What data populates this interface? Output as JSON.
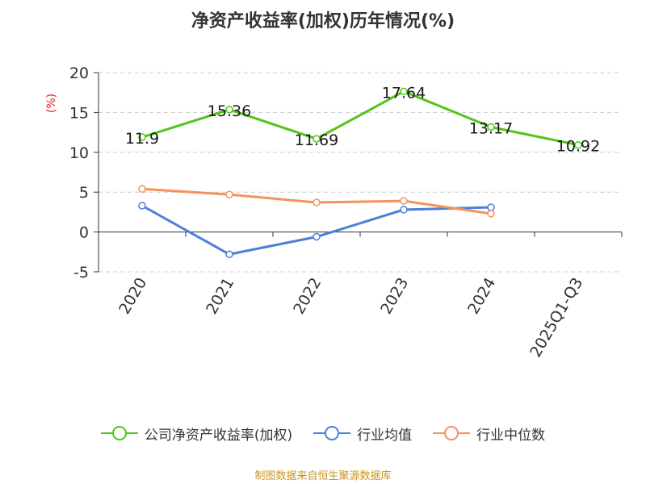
{
  "chart_data": {
    "type": "line",
    "title": "净资产收益率(加权)历年情况(%)",
    "ylabel": "(%)",
    "categories": [
      "2020",
      "2021",
      "2022",
      "2023",
      "2024",
      "2025Q1-Q3"
    ],
    "yticks": [
      "20",
      "15",
      "10",
      "5",
      "0",
      "-5"
    ],
    "ylim": [
      -5,
      20
    ],
    "grid": true,
    "legend_position": "bottom",
    "series": [
      {
        "name": "公司净资产收益率(加权)",
        "color": "#52c41a",
        "values": [
          11.9,
          15.36,
          11.69,
          17.64,
          13.17,
          10.92
        ],
        "labels": [
          "11.9",
          "15.36",
          "11.69",
          "17.64",
          "13.17",
          "10.92"
        ]
      },
      {
        "name": "行业均值",
        "color": "#4a80d9",
        "values": [
          3.3,
          -2.8,
          -0.6,
          2.8,
          3.1,
          null
        ]
      },
      {
        "name": "行业中位数",
        "color": "#f5925c",
        "values": [
          5.4,
          4.7,
          3.7,
          3.9,
          2.3,
          null
        ]
      }
    ]
  },
  "source": "制图数据来自恒生聚源数据库"
}
